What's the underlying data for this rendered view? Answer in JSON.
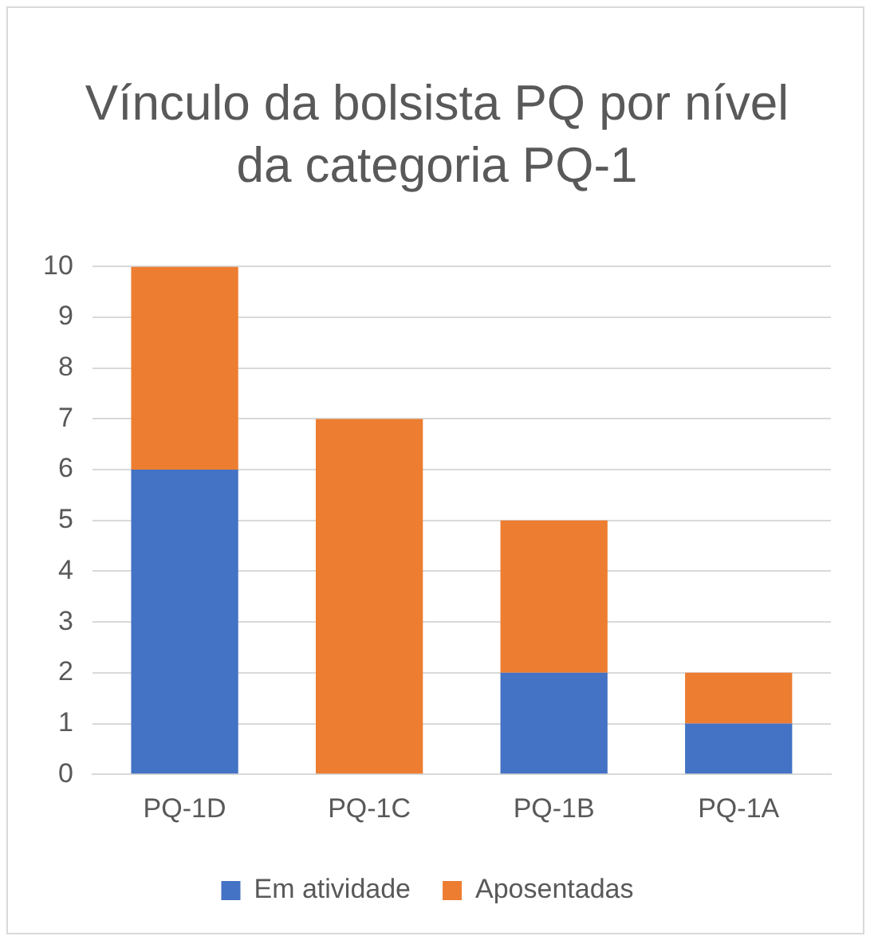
{
  "chart_data": {
    "type": "bar",
    "title": "Vínculo da bolsista PQ por nível da categoria PQ-1",
    "categories": [
      "PQ-1D",
      "PQ-1C",
      "PQ-1B",
      "PQ-1A"
    ],
    "stacked": true,
    "series": [
      {
        "name": "Em atividade",
        "color": "#4472c4",
        "values": [
          6,
          0,
          2,
          1
        ]
      },
      {
        "name": "Aposentadas",
        "color": "#ed7d31",
        "values": [
          4,
          7,
          3,
          1
        ]
      }
    ],
    "ylim": [
      0,
      10
    ],
    "yticks": [
      0,
      1,
      2,
      3,
      4,
      5,
      6,
      7,
      8,
      9,
      10
    ],
    "grid": "y",
    "legend": "bottom"
  }
}
